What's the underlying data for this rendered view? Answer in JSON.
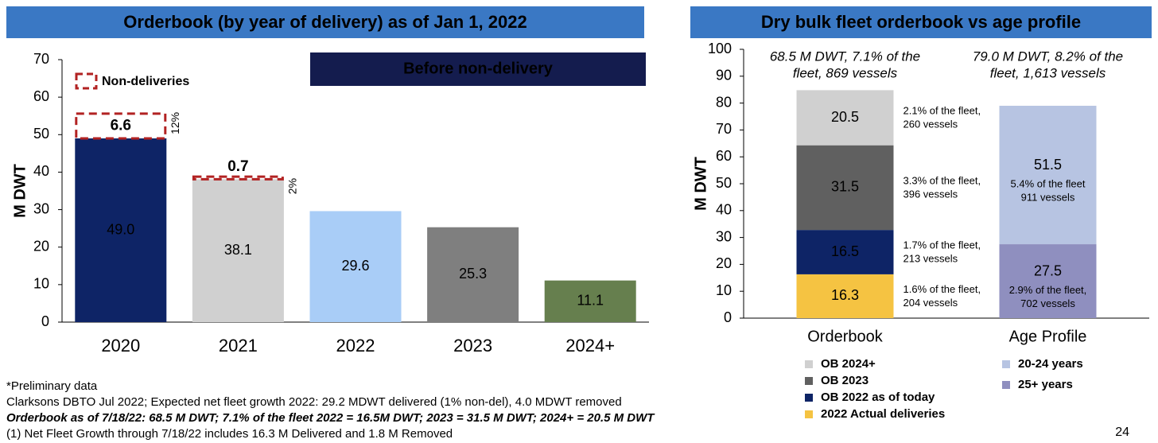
{
  "chart_data": [
    {
      "type": "stacked_bar",
      "title": "Orderbook (by year of delivery) as of Jan 1, 2022",
      "banner": "Before non-delivery",
      "ylabel": "M DWT",
      "categories": [
        "2020",
        "2021",
        "2022",
        "2023",
        "2024+"
      ],
      "ylim": [
        0,
        70
      ],
      "yticks": [
        0,
        10,
        20,
        30,
        40,
        50,
        60,
        70
      ],
      "series": [
        {
          "values": [
            49.0,
            38.1,
            29.6,
            25.3,
            11.1
          ],
          "value_labels": [
            "49.0",
            "38.1",
            "29.6",
            "25.3",
            "11.1"
          ],
          "colors": [
            "#0e2466",
            "#d0d0d0",
            "#a9cdf7",
            "#7f7f7f",
            "#667f4e"
          ],
          "label_colors": [
            "#ffffff",
            "#222222",
            "#1a2a66",
            "#ffffff",
            "#ffffff"
          ]
        },
        {
          "name": "Non-deliveries",
          "values": [
            6.6,
            0.7,
            null,
            null,
            null
          ],
          "color": "#b22222",
          "style": "dashed",
          "label_colors": [
            "#000000",
            "#000000",
            null,
            null,
            null
          ],
          "side_labels": [
            "12%",
            "2%",
            null,
            null,
            null
          ]
        }
      ]
    },
    {
      "type": "stacked_bar",
      "title": "Dry bulk fleet orderbook vs age profile",
      "ylabel": "M DWT",
      "categories": [
        "Orderbook",
        "Age Profile"
      ],
      "top_labels": [
        [
          "68.5 M DWT, 7.1% of the",
          "fleet, 869 vessels"
        ],
        [
          "79.0 M DWT, 8.2% of the",
          "fleet, 1,613 vessels"
        ]
      ],
      "ylim": [
        0,
        100
      ],
      "yticks": [
        0,
        10,
        20,
        30,
        40,
        50,
        60,
        70,
        80,
        90,
        100
      ],
      "series": [
        {
          "name": "2022 Actual deliveries",
          "values": [
            16.3,
            null
          ],
          "color": "#f5c342",
          "label_color": "#111111",
          "notes": [
            [
              "1.6% of the fleet,",
              "204 vessels"
            ],
            null
          ]
        },
        {
          "name": "OB 2022 as of today",
          "values": [
            16.5,
            null
          ],
          "color": "#0e2466",
          "label_color": "#ffffff",
          "notes": [
            [
              "1.7% of the fleet,",
              "213 vessels"
            ],
            null
          ]
        },
        {
          "name": "OB 2023",
          "values": [
            31.5,
            null
          ],
          "color": "#606060",
          "label_color": "#ffffff",
          "notes": [
            [
              "3.3% of the fleet,",
              "396 vessels"
            ],
            null
          ]
        },
        {
          "name": "OB 2024+",
          "values": [
            20.5,
            null
          ],
          "color": "#d0d0d0",
          "label_color": "#1a2a66",
          "notes": [
            [
              "2.1% of the fleet,",
              "260 vessels"
            ],
            null
          ]
        },
        {
          "name": "25+ years",
          "values": [
            null,
            27.5
          ],
          "color": "#8f8fbf",
          "label_color": "#111133",
          "notes": [
            null,
            [
              "2.9% of the fleet,",
              "702 vessels"
            ]
          ]
        },
        {
          "name": "20-24 years",
          "values": [
            null,
            51.5
          ],
          "color": "#b7c4e2",
          "label_color": "#111133",
          "notes": [
            null,
            [
              "5.4% of the fleet",
              "911 vessels"
            ]
          ]
        }
      ]
    }
  ],
  "footnotes": [
    "*Preliminary data",
    "Clarksons DBTO Jul 2022; Expected net fleet growth 2022: 29.2 MDWT delivered (1% non-del), 4.0 MDWT removed",
    "Orderbook as of 7/18/22: 68.5 M DWT; 7.1% of the fleet 2022 = 16.5M DWT; 2023 = 31.5 M DWT; 2024+ = 20.5 M DWT",
    "(1)    Net Fleet Growth through 7/18/22 includes 16.3 M Delivered and 1.8 M Removed"
  ],
  "page_number": "24"
}
